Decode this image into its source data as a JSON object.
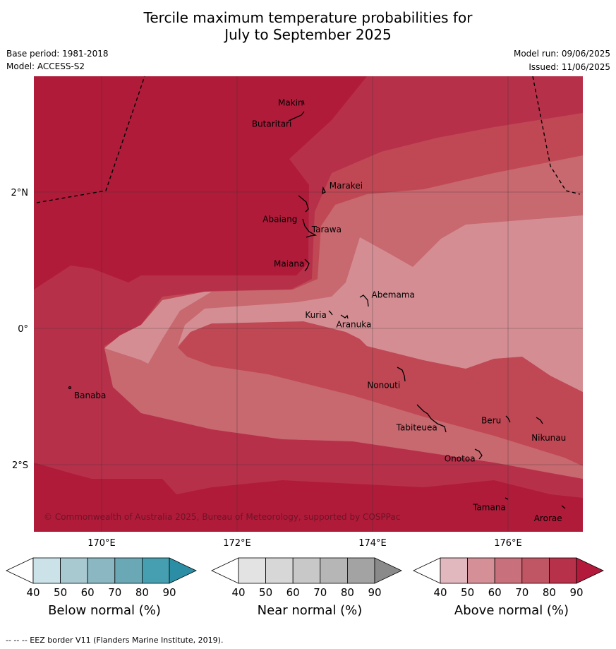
{
  "title_line1": "Tercile maximum temperature probabilities for",
  "title_line2": "July to September 2025",
  "base_period": "Base period: 1981-2018",
  "model": "Model: ACCESS-S2",
  "model_run": "Model run: 09/06/2025",
  "issued": "Issued: 11/06/2025",
  "copyright": "© Commonwealth of Australia 2025, Bureau of Meteorology, supported by COSPPac",
  "footer": "--  --  -- EEZ border V11 (Flanders Marine Institute, 2019).",
  "axes": {
    "lon_ticks": [
      {
        "value": 170,
        "label": "170°E"
      },
      {
        "value": 172,
        "label": "172°E"
      },
      {
        "value": 174,
        "label": "174°E"
      },
      {
        "value": 176,
        "label": "176°E"
      }
    ],
    "lat_ticks": [
      {
        "value": 2,
        "label": "2°N"
      },
      {
        "value": 0,
        "label": "0°"
      },
      {
        "value": -2,
        "label": "2°S"
      }
    ],
    "lon_range": [
      169.0,
      177.1
    ],
    "lat_range": [
      -3.0,
      3.7
    ]
  },
  "places": [
    {
      "name": "Makin",
      "lon": 172.99,
      "lat": 3.33
    },
    {
      "name": "Butaritari",
      "lon": 172.79,
      "lat": 3.06
    },
    {
      "name": "Marakei",
      "lon": 173.3,
      "lat": 2.0
    },
    {
      "name": "Abaiang",
      "lon": 172.93,
      "lat": 1.79
    },
    {
      "name": "Tarawa",
      "lon": 173.05,
      "lat": 1.38
    },
    {
      "name": "Maiana",
      "lon": 173.0,
      "lat": 0.93
    },
    {
      "name": "Abemama",
      "lon": 173.86,
      "lat": 0.4
    },
    {
      "name": "Kuria",
      "lon": 173.42,
      "lat": 0.23
    },
    {
      "name": "Aranuka",
      "lon": 173.61,
      "lat": 0.16
    },
    {
      "name": "Nonouti",
      "lon": 174.42,
      "lat": -0.65
    },
    {
      "name": "Banaba",
      "lon": 169.53,
      "lat": -0.88
    },
    {
      "name": "Tabiteuea",
      "lon": 174.83,
      "lat": -1.33
    },
    {
      "name": "Beru",
      "lon": 175.98,
      "lat": -1.33
    },
    {
      "name": "Nikunau",
      "lon": 176.45,
      "lat": -1.36
    },
    {
      "name": "Onotoa",
      "lon": 175.56,
      "lat": -1.8
    },
    {
      "name": "Tamana",
      "lon": 175.98,
      "lat": -2.5
    },
    {
      "name": "Arorae",
      "lon": 176.82,
      "lat": -2.64
    }
  ],
  "colorbars": [
    {
      "title": "Below normal (%)",
      "ticks": [
        "40",
        "50",
        "60",
        "70",
        "80",
        "90"
      ],
      "colors": [
        "#ffffff",
        "#cbe2e9",
        "#a8c9d0",
        "#8ab7c2",
        "#6aa8b6",
        "#459fb0",
        "#2b8ea5"
      ]
    },
    {
      "title": "Near normal (%)",
      "ticks": [
        "40",
        "50",
        "60",
        "70",
        "80",
        "90"
      ],
      "colors": [
        "#ffffff",
        "#e3e3e3",
        "#d7d7d7",
        "#c8c8c8",
        "#b6b6b6",
        "#a3a3a3",
        "#8a8a8a"
      ]
    },
    {
      "title": "Above normal (%)",
      "ticks": [
        "40",
        "50",
        "60",
        "70",
        "80",
        "90"
      ],
      "colors": [
        "#ffffff",
        "#e0b8be",
        "#d48f97",
        "#c8707b",
        "#c05563",
        "#b7314a",
        "#b3193a"
      ]
    }
  ],
  "colors": {
    "band90": "#b01b3a",
    "band80": "#b7304a",
    "band70": "#c04854",
    "band60": "#c8686f",
    "band50": "#d48e93"
  }
}
